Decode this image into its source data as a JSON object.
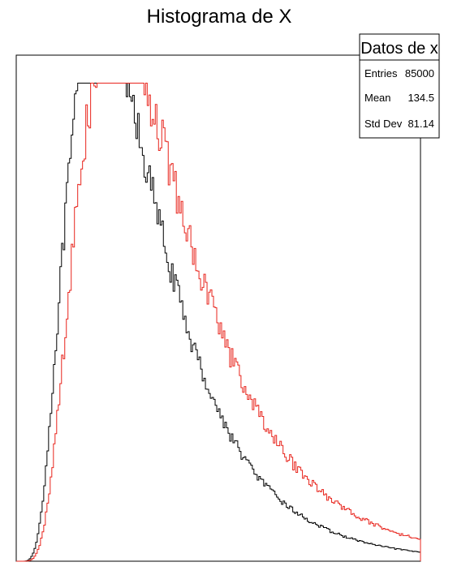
{
  "chart_data": {
    "type": "histogram",
    "title": "Histograma de X",
    "xlabel": "",
    "ylabel": "",
    "grid": false,
    "n_bins": 250,
    "series": [
      {
        "color": "#000000",
        "mode": 70,
        "peak": 1.0,
        "sigma": 0.55,
        "noise": 0.05
      },
      {
        "color": "#e8241c",
        "mode": 84,
        "peak": 0.98,
        "sigma": 0.55,
        "noise": 0.06
      }
    ],
    "stats_box": {
      "title": "Datos de x",
      "placement": "top-right",
      "rows": [
        {
          "label": "Entries",
          "value": "85000"
        },
        {
          "label": "Mean",
          "value": "134.5"
        },
        {
          "label": "Std Dev",
          "value": "81.14"
        }
      ]
    }
  }
}
